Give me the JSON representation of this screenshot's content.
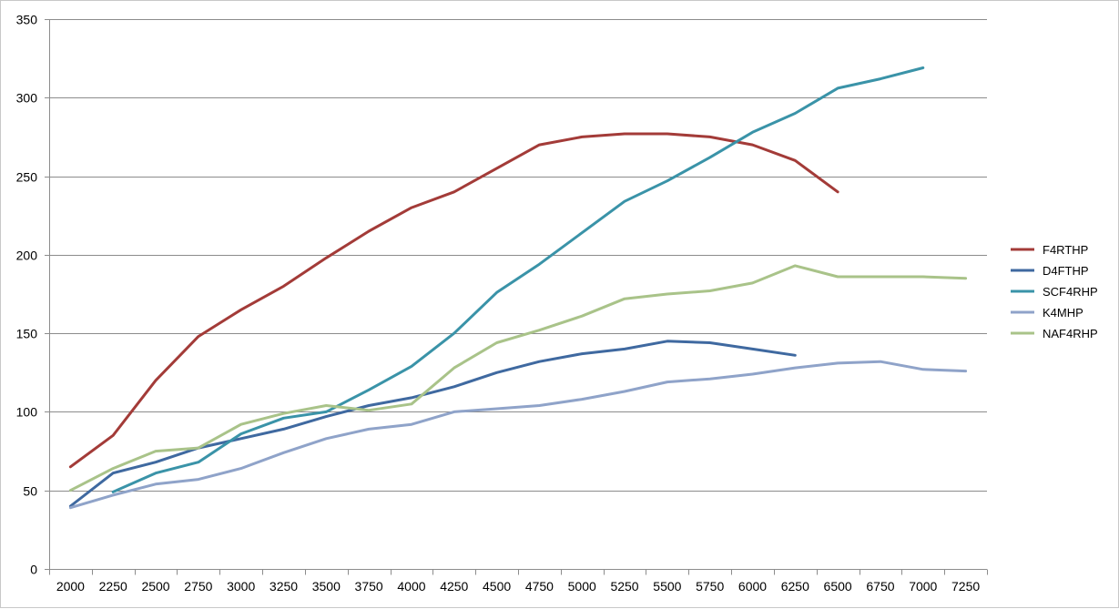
{
  "chart_data": {
    "type": "line",
    "title": "",
    "xlabel": "",
    "ylabel": "",
    "categories": [
      "2000",
      "2250",
      "2500",
      "2750",
      "3000",
      "3250",
      "3500",
      "3750",
      "4000",
      "4250",
      "4500",
      "4750",
      "5000",
      "5250",
      "5500",
      "5750",
      "6000",
      "6250",
      "6500",
      "6750",
      "7000",
      "7250"
    ],
    "ylim": [
      0,
      350
    ],
    "y_ticks": [
      0,
      50,
      100,
      150,
      200,
      250,
      300,
      350
    ],
    "grid": true,
    "legend_position": "right",
    "series": [
      {
        "name": "F4RTHP",
        "color": "#a33b38",
        "values": [
          65,
          85,
          120,
          148,
          165,
          180,
          198,
          215,
          230,
          240,
          255,
          270,
          275,
          277,
          277,
          275,
          270,
          260,
          240,
          null,
          null,
          null
        ]
      },
      {
        "name": "D4FTHP",
        "color": "#3f69a0",
        "values": [
          40,
          61,
          68,
          77,
          83,
          89,
          97,
          104,
          109,
          116,
          125,
          132,
          137,
          140,
          145,
          144,
          140,
          136,
          null,
          null,
          null,
          null
        ]
      },
      {
        "name": "SCF4RHP",
        "color": "#3a93a8",
        "values": [
          null,
          49,
          61,
          68,
          86,
          96,
          100,
          114,
          129,
          150,
          176,
          194,
          214,
          234,
          247,
          262,
          278,
          290,
          306,
          312,
          319,
          null
        ]
      },
      {
        "name": "K4MHP",
        "color": "#8fa3c9",
        "values": [
          39,
          47,
          54,
          57,
          64,
          74,
          83,
          89,
          92,
          100,
          102,
          104,
          108,
          113,
          119,
          121,
          124,
          128,
          131,
          132,
          127,
          126
        ]
      },
      {
        "name": "NAF4RHP",
        "color": "#a9c389",
        "values": [
          50,
          64,
          75,
          77,
          92,
          99,
          104,
          101,
          105,
          128,
          144,
          152,
          161,
          172,
          175,
          177,
          182,
          193,
          186,
          186,
          186,
          185
        ]
      }
    ]
  }
}
